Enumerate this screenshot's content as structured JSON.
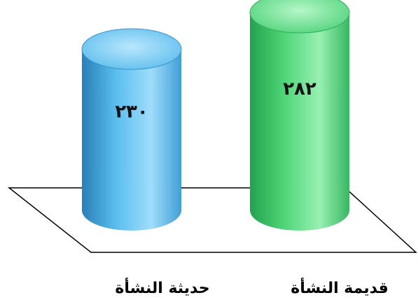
{
  "chart_data": {
    "type": "bar",
    "style": "3d-cylinder",
    "categories": [
      "حديثة النشأة",
      "قديمة النشأة"
    ],
    "values": [
      230,
      282
    ],
    "value_labels": [
      "٢٣٠",
      "٢٨٢"
    ],
    "colors": [
      "#5bbfee",
      "#4fd67a"
    ],
    "ylim": [
      0,
      300
    ],
    "grid": false,
    "legend": "none"
  }
}
